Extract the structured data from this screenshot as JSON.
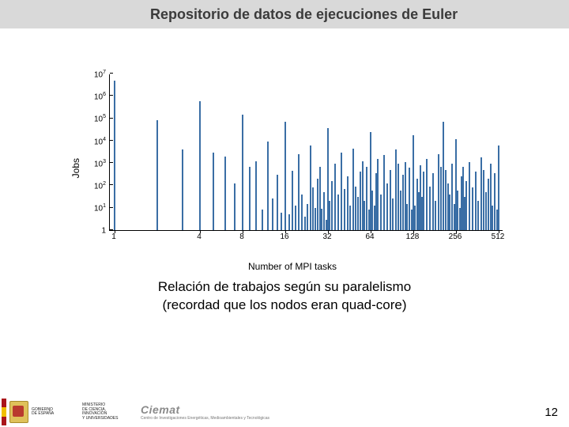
{
  "header": {
    "title": "Repositorio de datos de ejecuciones de Euler"
  },
  "caption": {
    "line1": "Relación de trabajos según su paralelismo",
    "line2": "(recordad que los nodos eran quad-core)"
  },
  "page_number": "12",
  "footer": {
    "gov1": "GOBIERNO",
    "gov2": "DE ESPAÑA",
    "min1": "MINISTERIO",
    "min2": "DE CIENCIA, INNOVACIÓN",
    "min3": "Y UNIVERSIDADES",
    "ciemat": "Ciemat",
    "ciemat_sub": "Centro de Investigaciones Energéticas, Medioambientales y Tecnológicas",
    "flag_colors": [
      "#aa151b",
      "#f1bf00",
      "#aa151b"
    ]
  },
  "chart": {
    "type": "bar",
    "ylabel": "Jobs",
    "xlabel": "Number of MPI tasks",
    "bar_color": "#3a6ea5",
    "axis_color": "#000000",
    "background_color": "#ffffff",
    "label_fontsize": 12,
    "tick_fontsize": 10,
    "y_scale": "log",
    "y_exp_min": 0,
    "y_exp_max": 7,
    "y_ticks": [
      {
        "exp": 0,
        "label_main": "1",
        "label_sup": ""
      },
      {
        "exp": 1,
        "label_main": "10",
        "label_sup": "1"
      },
      {
        "exp": 2,
        "label_main": "10",
        "label_sup": "2"
      },
      {
        "exp": 3,
        "label_main": "10",
        "label_sup": "3"
      },
      {
        "exp": 4,
        "label_main": "10",
        "label_sup": "4"
      },
      {
        "exp": 5,
        "label_main": "10",
        "label_sup": "5"
      },
      {
        "exp": 6,
        "label_main": "10",
        "label_sup": "6"
      },
      {
        "exp": 7,
        "label_main": "10",
        "label_sup": "7"
      }
    ],
    "x_scale": "log2",
    "x_min": 1,
    "x_max": 512,
    "x_ticks": [
      {
        "v": 1,
        "label": "1"
      },
      {
        "v": 4,
        "label": "4"
      },
      {
        "v": 8,
        "label": "8"
      },
      {
        "v": 16,
        "label": "16"
      },
      {
        "v": 32,
        "label": "32"
      },
      {
        "v": 64,
        "label": "64"
      },
      {
        "v": 128,
        "label": "128"
      },
      {
        "v": 256,
        "label": "256"
      },
      {
        "v": 512,
        "label": "512"
      }
    ],
    "bars": [
      {
        "x": 1,
        "y": 5000000
      },
      {
        "x": 2,
        "y": 80000
      },
      {
        "x": 3,
        "y": 4000
      },
      {
        "x": 4,
        "y": 600000
      },
      {
        "x": 5,
        "y": 3000
      },
      {
        "x": 6,
        "y": 2000
      },
      {
        "x": 7,
        "y": 120
      },
      {
        "x": 8,
        "y": 150000
      },
      {
        "x": 9,
        "y": 700
      },
      {
        "x": 10,
        "y": 1200
      },
      {
        "x": 11,
        "y": 8
      },
      {
        "x": 12,
        "y": 9000
      },
      {
        "x": 13,
        "y": 25
      },
      {
        "x": 14,
        "y": 300
      },
      {
        "x": 15,
        "y": 6
      },
      {
        "x": 16,
        "y": 70000
      },
      {
        "x": 17,
        "y": 5
      },
      {
        "x": 18,
        "y": 450
      },
      {
        "x": 19,
        "y": 12
      },
      {
        "x": 20,
        "y": 2500
      },
      {
        "x": 21,
        "y": 40
      },
      {
        "x": 22,
        "y": 4
      },
      {
        "x": 23,
        "y": 15
      },
      {
        "x": 24,
        "y": 6000
      },
      {
        "x": 25,
        "y": 80
      },
      {
        "x": 26,
        "y": 10
      },
      {
        "x": 27,
        "y": 200
      },
      {
        "x": 28,
        "y": 700
      },
      {
        "x": 29,
        "y": 9
      },
      {
        "x": 30,
        "y": 50
      },
      {
        "x": 31,
        "y": 3
      },
      {
        "x": 32,
        "y": 35000
      },
      {
        "x": 33,
        "y": 20
      },
      {
        "x": 34,
        "y": 150
      },
      {
        "x": 36,
        "y": 900
      },
      {
        "x": 38,
        "y": 40
      },
      {
        "x": 40,
        "y": 3000
      },
      {
        "x": 42,
        "y": 70
      },
      {
        "x": 44,
        "y": 250
      },
      {
        "x": 46,
        "y": 12
      },
      {
        "x": 48,
        "y": 4500
      },
      {
        "x": 50,
        "y": 90
      },
      {
        "x": 52,
        "y": 30
      },
      {
        "x": 54,
        "y": 400
      },
      {
        "x": 56,
        "y": 1200
      },
      {
        "x": 58,
        "y": 20
      },
      {
        "x": 60,
        "y": 700
      },
      {
        "x": 62,
        "y": 8
      },
      {
        "x": 64,
        "y": 25000
      },
      {
        "x": 66,
        "y": 60
      },
      {
        "x": 68,
        "y": 12
      },
      {
        "x": 70,
        "y": 350
      },
      {
        "x": 72,
        "y": 1500
      },
      {
        "x": 76,
        "y": 40
      },
      {
        "x": 80,
        "y": 2200
      },
      {
        "x": 84,
        "y": 120
      },
      {
        "x": 88,
        "y": 500
      },
      {
        "x": 92,
        "y": 25
      },
      {
        "x": 96,
        "y": 4000
      },
      {
        "x": 100,
        "y": 900
      },
      {
        "x": 104,
        "y": 60
      },
      {
        "x": 108,
        "y": 300
      },
      {
        "x": 112,
        "y": 1100
      },
      {
        "x": 116,
        "y": 15
      },
      {
        "x": 120,
        "y": 600
      },
      {
        "x": 124,
        "y": 8
      },
      {
        "x": 128,
        "y": 18000
      },
      {
        "x": 132,
        "y": 12
      },
      {
        "x": 136,
        "y": 200
      },
      {
        "x": 140,
        "y": 50
      },
      {
        "x": 144,
        "y": 800
      },
      {
        "x": 148,
        "y": 30
      },
      {
        "x": 152,
        "y": 400
      },
      {
        "x": 160,
        "y": 1500
      },
      {
        "x": 168,
        "y": 90
      },
      {
        "x": 176,
        "y": 350
      },
      {
        "x": 184,
        "y": 20
      },
      {
        "x": 192,
        "y": 2500
      },
      {
        "x": 200,
        "y": 700
      },
      {
        "x": 208,
        "y": 70000
      },
      {
        "x": 216,
        "y": 500
      },
      {
        "x": 224,
        "y": 120
      },
      {
        "x": 232,
        "y": 40
      },
      {
        "x": 240,
        "y": 900
      },
      {
        "x": 248,
        "y": 15
      },
      {
        "x": 256,
        "y": 12000
      },
      {
        "x": 264,
        "y": 60
      },
      {
        "x": 272,
        "y": 10
      },
      {
        "x": 280,
        "y": 250
      },
      {
        "x": 288,
        "y": 700
      },
      {
        "x": 296,
        "y": 30
      },
      {
        "x": 304,
        "y": 150
      },
      {
        "x": 320,
        "y": 1100
      },
      {
        "x": 336,
        "y": 80
      },
      {
        "x": 352,
        "y": 400
      },
      {
        "x": 368,
        "y": 20
      },
      {
        "x": 384,
        "y": 1800
      },
      {
        "x": 400,
        "y": 500
      },
      {
        "x": 416,
        "y": 50
      },
      {
        "x": 432,
        "y": 200
      },
      {
        "x": 448,
        "y": 900
      },
      {
        "x": 464,
        "y": 12
      },
      {
        "x": 480,
        "y": 350
      },
      {
        "x": 496,
        "y": 8
      },
      {
        "x": 512,
        "y": 6000
      }
    ]
  }
}
